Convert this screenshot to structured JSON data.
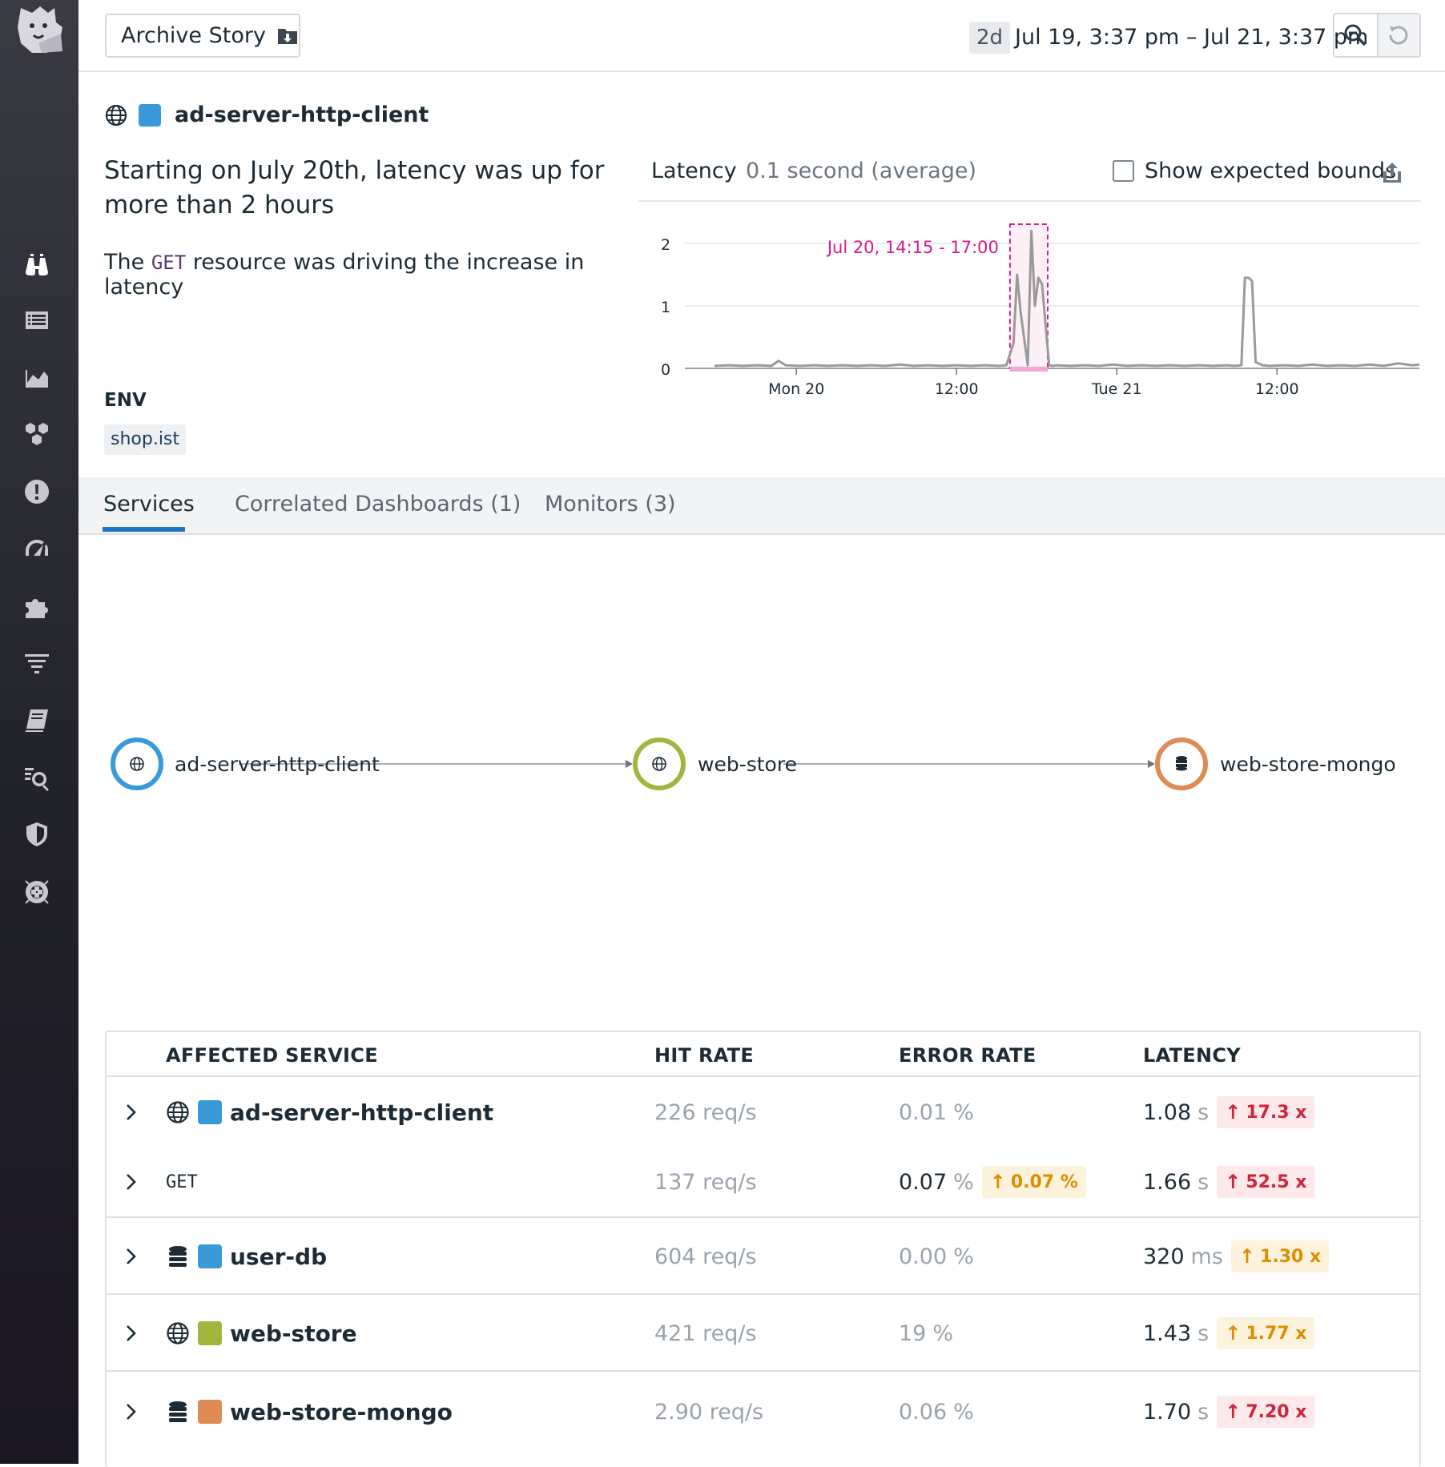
{
  "toolbar": {
    "archive_label": "Archive Story",
    "range_badge": "2d",
    "range_text": "Jul 19, 3:37 pm – Jul 21, 3:37 pm"
  },
  "header": {
    "service_name": "ad-server-http-client",
    "service_color": "#3a9ad9"
  },
  "story": {
    "title": "Starting on July 20th, latency was up for more than 2 hours",
    "subtitle_before": "The",
    "subtitle_code": "GET",
    "subtitle_after": "resource was driving the increase in latency",
    "env_label": "ENV",
    "env_value": "shop.ist"
  },
  "chart_panel": {
    "metric": "Latency",
    "average": "0.1 second (average)",
    "bounds_label": "Show expected bounds",
    "bounds_checked": false
  },
  "chart_data": {
    "type": "line",
    "title": "",
    "xlabel": "",
    "ylabel": "",
    "x_ticks": [
      "Mon 20",
      "12:00",
      "Tue 21",
      "12:00"
    ],
    "y_ticks": [
      "0",
      "1",
      "2"
    ],
    "ylim": [
      0,
      2.2
    ],
    "grid": true,
    "highlight": {
      "label": "Jul 20, 14:15 - 17:00",
      "color": "#d6198c"
    },
    "series": [
      {
        "color": "#9a9a9a",
        "x_hours": [
          0,
          2,
          4,
          6,
          8,
          9,
          10,
          12,
          14,
          16,
          18,
          20,
          22,
          24,
          26,
          28,
          30,
          32,
          34,
          36,
          38,
          40,
          41,
          42,
          42.5,
          43,
          44,
          44.5,
          45,
          45.5,
          46,
          47,
          47.5,
          48,
          50,
          52,
          54,
          56,
          58,
          60,
          62,
          64,
          66,
          68,
          70,
          72,
          73,
          74,
          74.5,
          75,
          75.5,
          76,
          77,
          78,
          80,
          82,
          84,
          86,
          88,
          90,
          92,
          94,
          96,
          98,
          99
        ],
        "y": [
          0.04,
          0.05,
          0.04,
          0.05,
          0.04,
          0.12,
          0.05,
          0.04,
          0.05,
          0.04,
          0.05,
          0.04,
          0.05,
          0.04,
          0.06,
          0.04,
          0.05,
          0.04,
          0.05,
          0.04,
          0.05,
          0.04,
          0.05,
          0.4,
          1.5,
          0.9,
          0.05,
          2.2,
          1.0,
          1.45,
          1.35,
          0.05,
          0.04,
          0.05,
          0.04,
          0.05,
          0.04,
          0.06,
          0.04,
          0.05,
          0.04,
          0.05,
          0.04,
          0.05,
          0.04,
          0.05,
          0.04,
          0.05,
          1.45,
          1.45,
          1.4,
          0.1,
          0.05,
          0.04,
          0.05,
          0.04,
          0.06,
          0.04,
          0.05,
          0.04,
          0.06,
          0.04,
          0.08,
          0.05,
          0.06
        ]
      }
    ]
  },
  "tabs": [
    {
      "label": "Services",
      "active": true
    },
    {
      "label": "Correlated Dashboards (1)",
      "active": false
    },
    {
      "label": "Monitors (3)",
      "active": false
    }
  ],
  "service_map": {
    "nodes": [
      {
        "name": "ad-server-http-client",
        "color": "#3a9ad9",
        "icon": "globe-icon"
      },
      {
        "name": "web-store",
        "color": "#a3b53c",
        "icon": "globe-icon"
      },
      {
        "name": "web-store-mongo",
        "color": "#e08a55",
        "icon": "database-icon"
      }
    ]
  },
  "table": {
    "headers": [
      "AFFECTED SERVICE",
      "HIT RATE",
      "ERROR RATE",
      "LATENCY"
    ],
    "rows": [
      {
        "name": "ad-server-http-client",
        "icon": "globe-icon",
        "color": "#3a9ad9",
        "hit": "226 req/s",
        "err_val": "0.01",
        "err_unit": "%",
        "err_pill": "",
        "err_pill_color": "",
        "lat_val": "1.08",
        "lat_unit": "s",
        "lat_pill": "17.3 x",
        "lat_pill_color": "red",
        "resource": false
      },
      {
        "name": "GET",
        "icon": "",
        "color": "",
        "hit": "137 req/s",
        "err_val": "0.07",
        "err_unit": "%",
        "err_pill": "0.07 %",
        "err_pill_color": "amber",
        "lat_val": "1.66",
        "lat_unit": "s",
        "lat_pill": "52.5 x",
        "lat_pill_color": "red",
        "resource": true
      },
      {
        "name": "user-db",
        "icon": "database-icon",
        "color": "#3a9ad9",
        "hit": "604 req/s",
        "err_val": "0.00",
        "err_unit": "%",
        "err_pill": "",
        "err_pill_color": "",
        "lat_val": "320",
        "lat_unit": "ms",
        "lat_pill": "1.30 x",
        "lat_pill_color": "amber",
        "resource": false
      },
      {
        "name": "web-store",
        "icon": "globe-icon",
        "color": "#a3b53c",
        "hit": "421 req/s",
        "err_val": "19",
        "err_unit": "%",
        "err_pill": "",
        "err_pill_color": "",
        "lat_val": "1.43",
        "lat_unit": "s",
        "lat_pill": "1.77 x",
        "lat_pill_color": "amber",
        "resource": false
      },
      {
        "name": "web-store-mongo",
        "icon": "database-icon",
        "color": "#e08a55",
        "hit": "2.90 req/s",
        "err_val": "0.06",
        "err_unit": "%",
        "err_pill": "",
        "err_pill_color": "",
        "lat_val": "1.70",
        "lat_unit": "s",
        "lat_pill": "7.20 x",
        "lat_pill_color": "red",
        "resource": false
      }
    ]
  }
}
